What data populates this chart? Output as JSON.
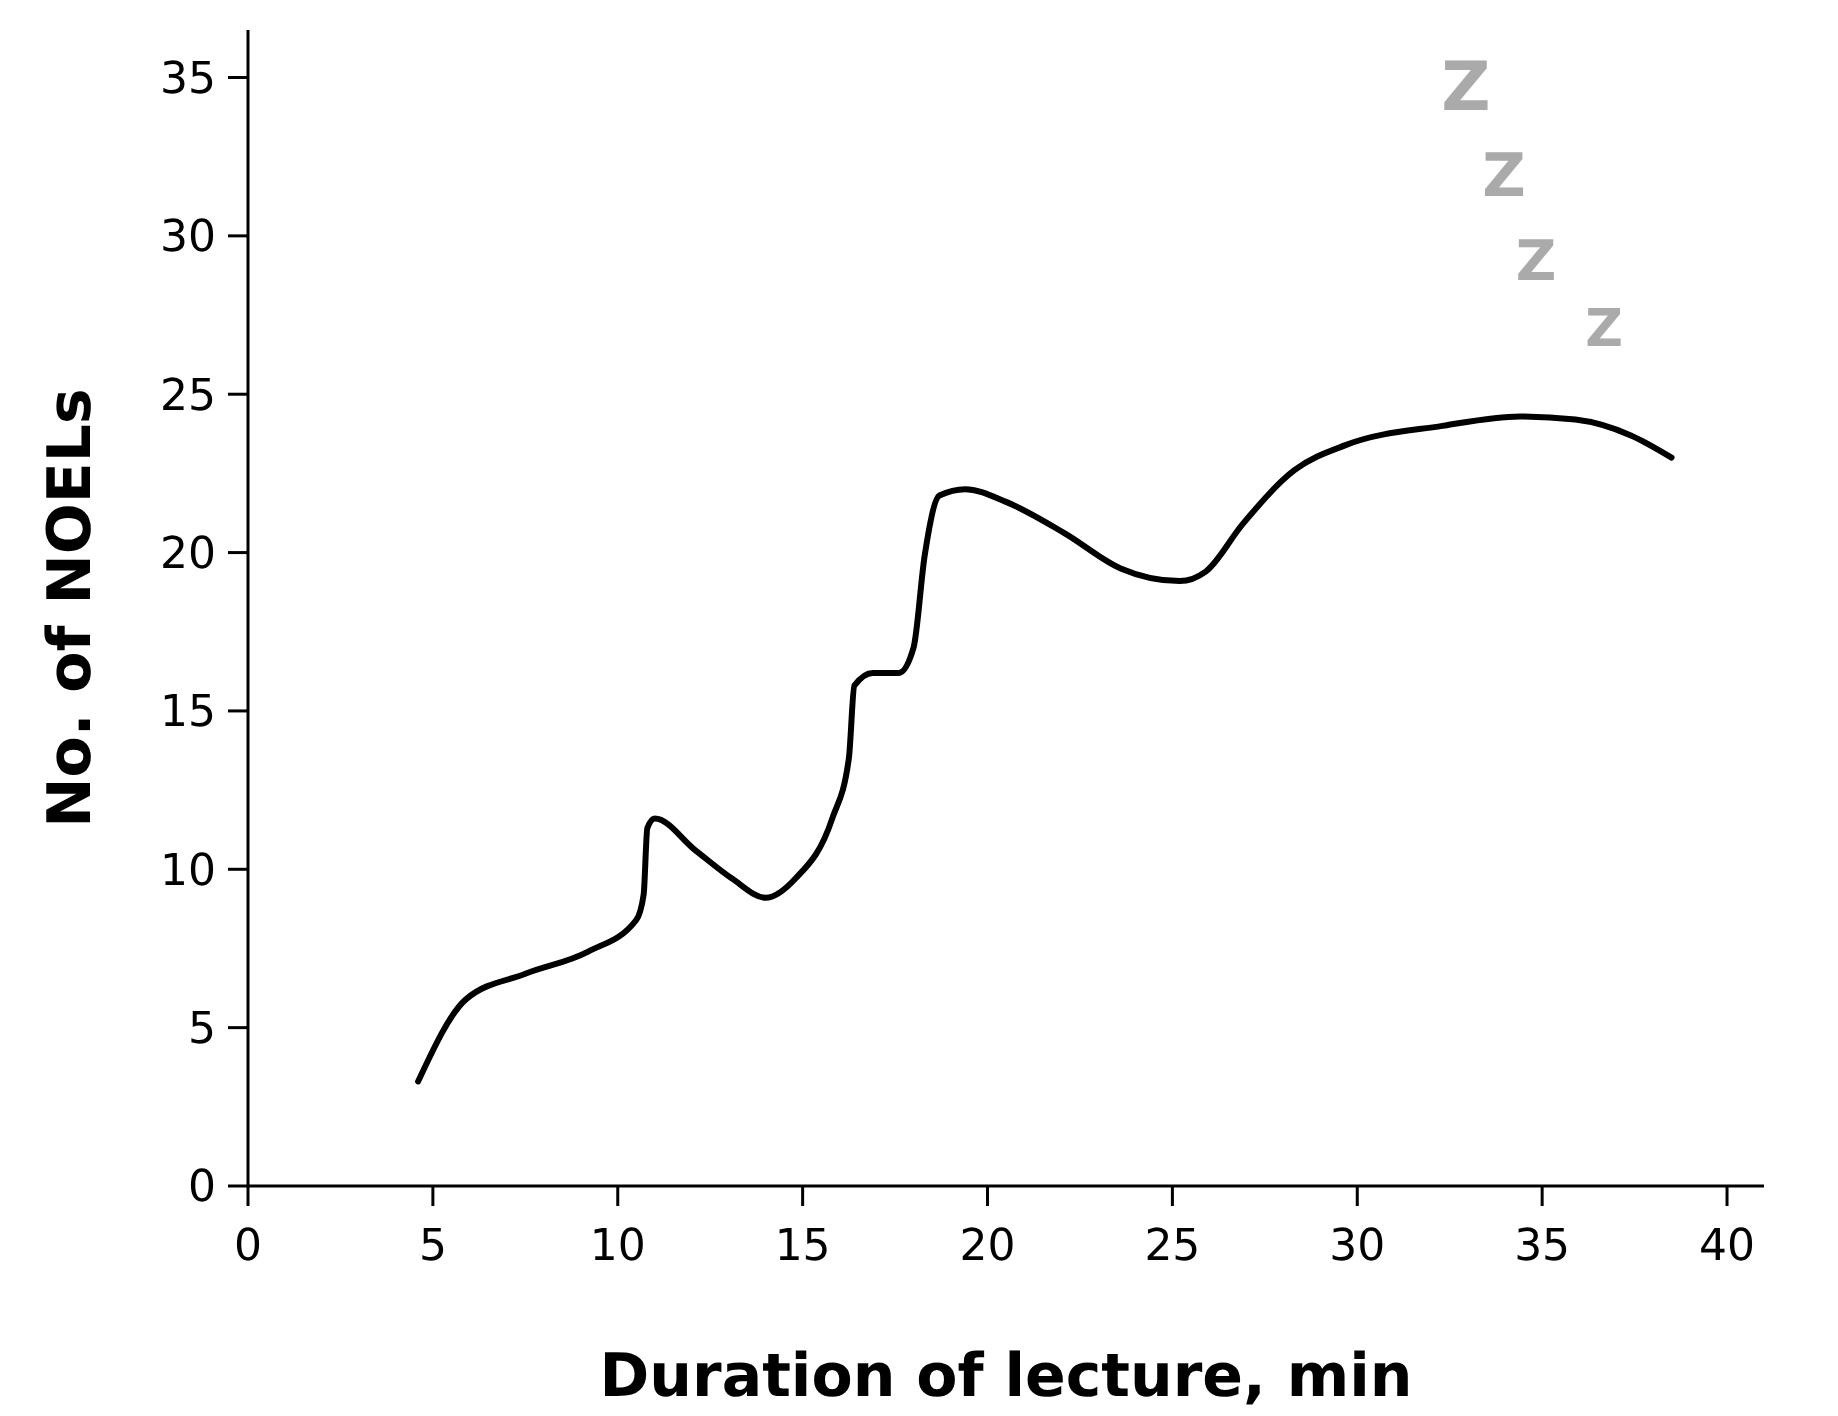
{
  "chart_data": {
    "type": "line",
    "xlabel": "Duration of lecture, min",
    "ylabel": "No. of NOELs",
    "xlim": [
      0,
      41
    ],
    "ylim": [
      0,
      36.5
    ],
    "xticks": [
      0,
      5,
      10,
      15,
      20,
      25,
      30,
      35,
      40
    ],
    "yticks": [
      0,
      5,
      10,
      15,
      20,
      25,
      30,
      35
    ],
    "grid": false,
    "marker": "none",
    "line_style": "solid",
    "annotations": [
      "Z",
      "Z",
      "Z",
      "Z"
    ],
    "series": [
      {
        "color": "#000000",
        "x": [
          4.6,
          5.9,
          7.5,
          9.2,
          10.5,
          10.7,
          10.8,
          11.0,
          12.1,
          13.1,
          14.0,
          14.8,
          15.8,
          16.25,
          16.4,
          16.9,
          17.6,
          18.0,
          18.3,
          18.7,
          19.4,
          20.5,
          22.1,
          23.6,
          25.2,
          25.9,
          26.9,
          28.3,
          29.7,
          32.3,
          34.4,
          35.9,
          37.4,
          38.5
        ],
        "values": [
          3.3,
          5.9,
          6.7,
          7.4,
          8.4,
          9.2,
          11.3,
          11.6,
          10.6,
          9.7,
          9.1,
          9.7,
          11.6,
          13.5,
          15.8,
          16.2,
          16.2,
          17.0,
          19.9,
          21.8,
          22.0,
          21.6,
          20.6,
          19.5,
          19.1,
          19.4,
          20.9,
          22.6,
          23.4,
          24.0,
          24.3,
          24.2,
          23.7,
          23.0
        ]
      }
    ]
  }
}
